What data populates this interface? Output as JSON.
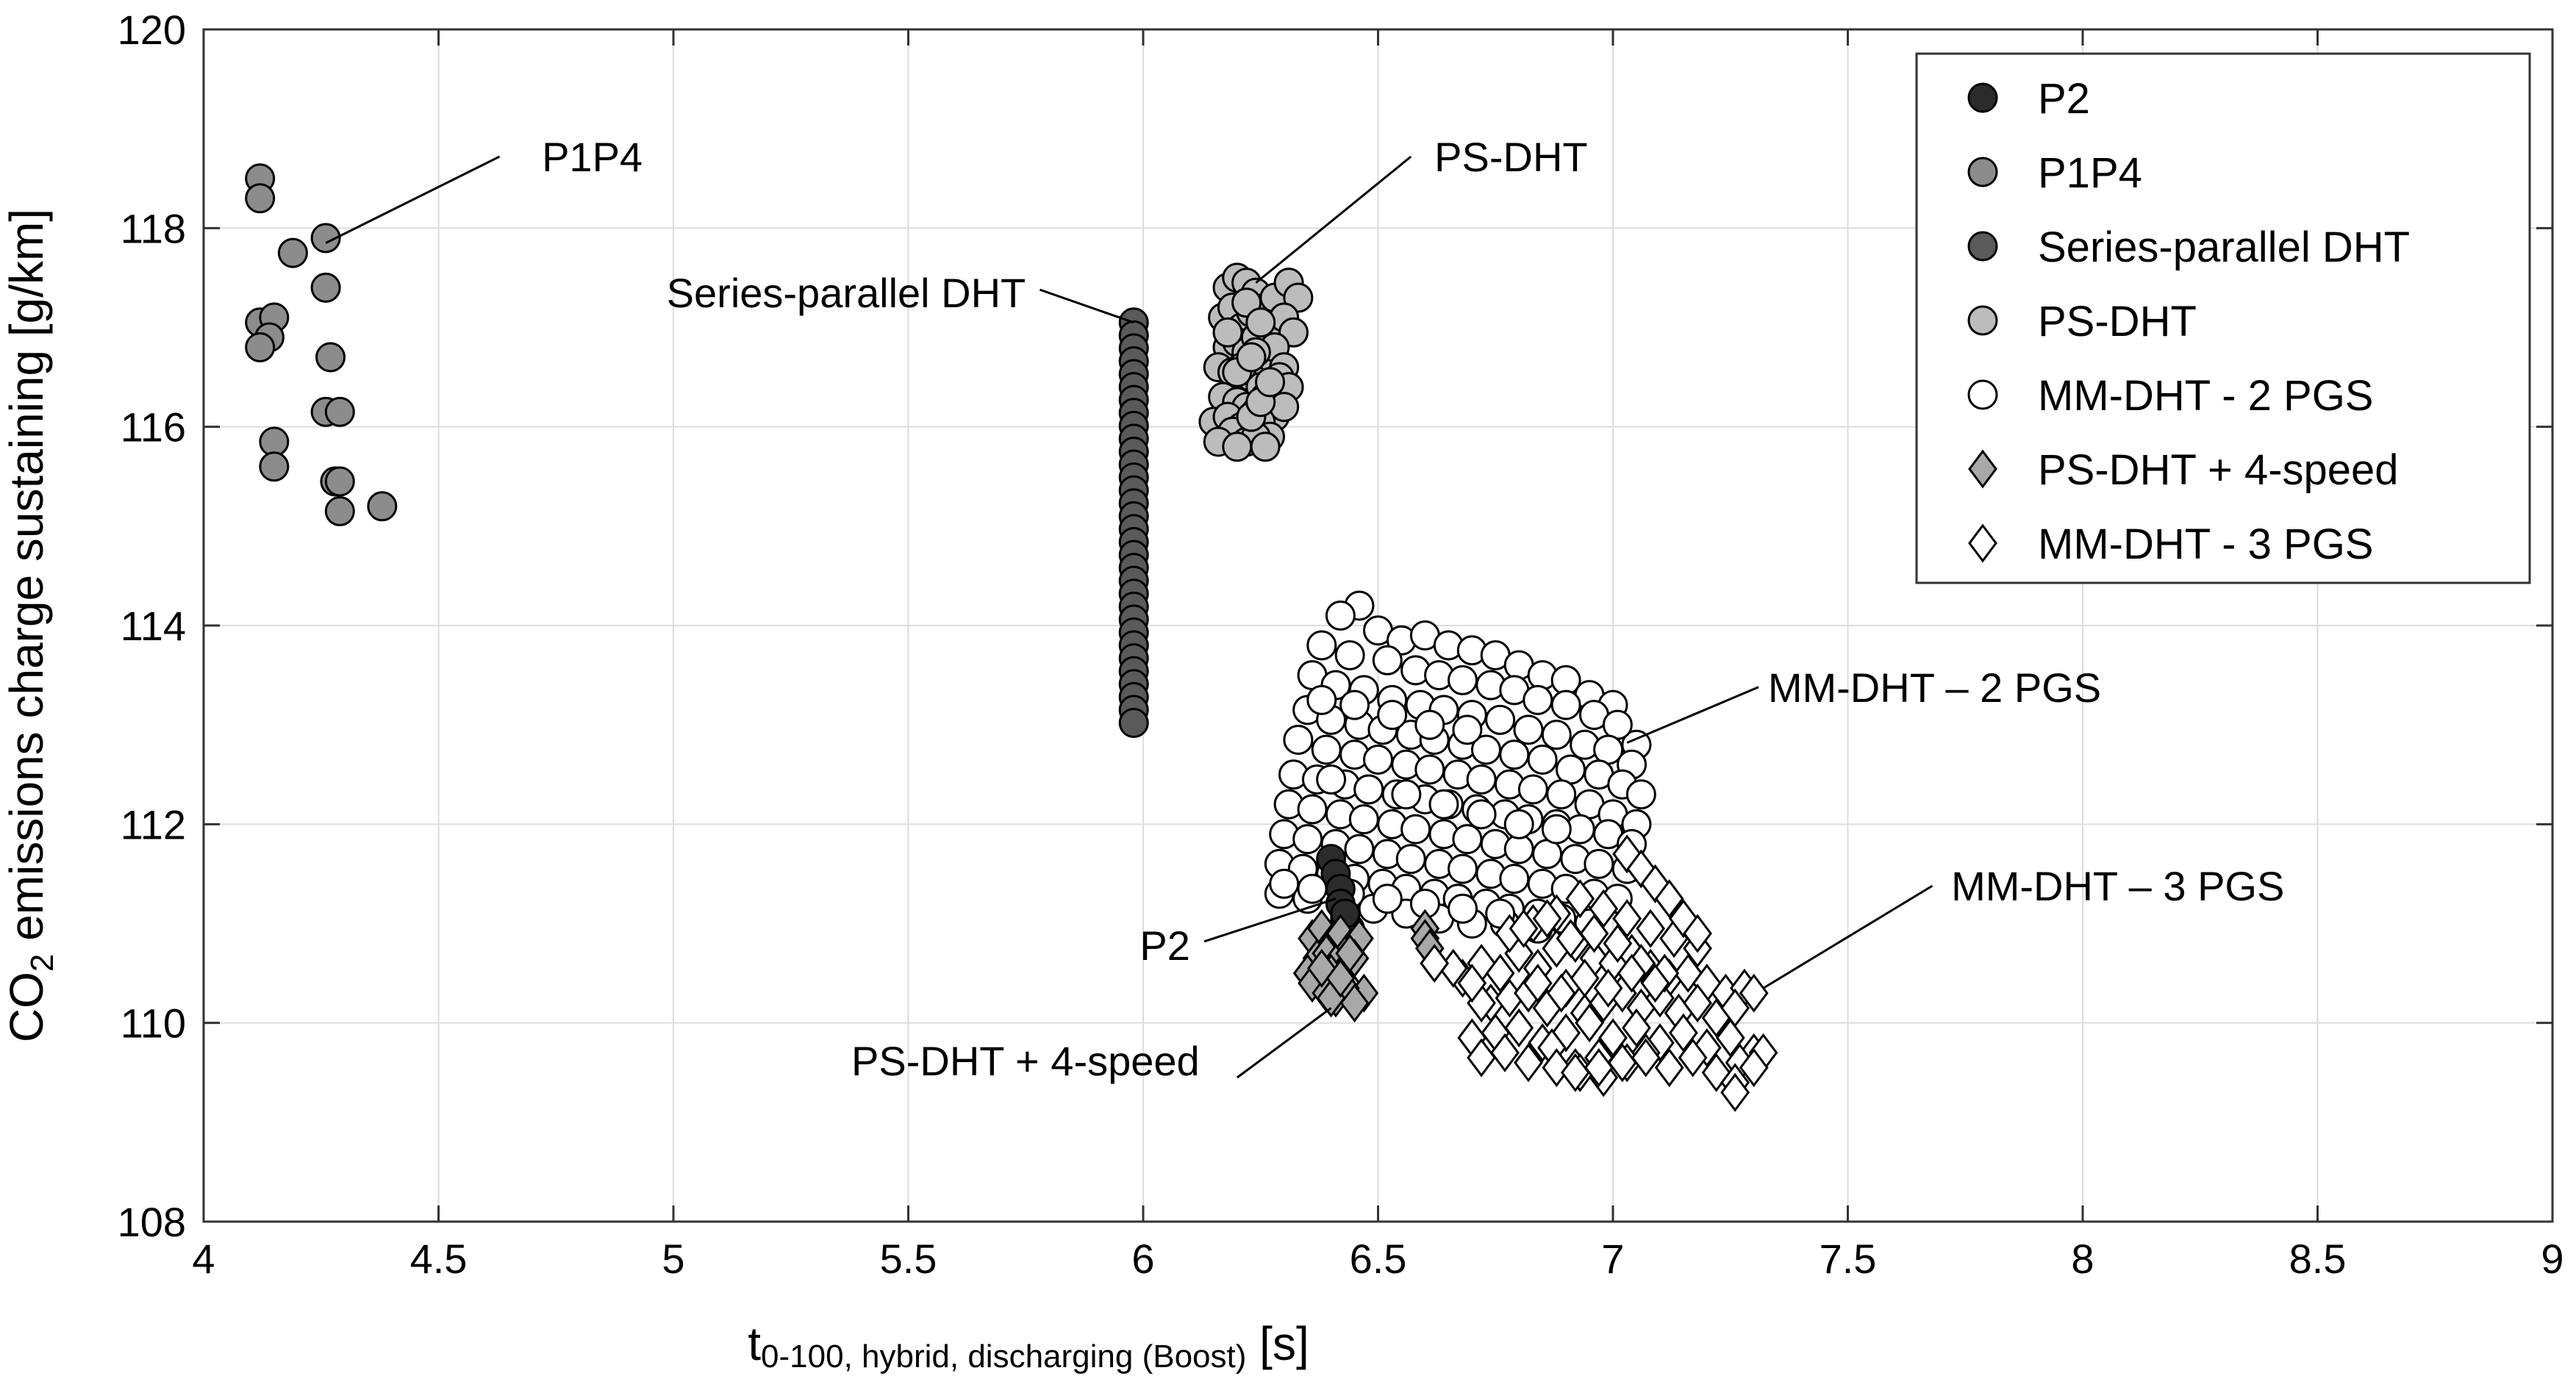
{
  "chart_data": {
    "type": "scatter",
    "xlabel": {
      "main": "t",
      "sub": "0-100, hybrid, discharging (Boost)",
      "unit": " [s]"
    },
    "ylabel": {
      "pre": "CO",
      "sub": "2",
      "post": " emissions charge sustaining [g/km]"
    },
    "xlim": [
      4,
      9
    ],
    "ylim": [
      108,
      120
    ],
    "xticks": [
      "4",
      "4.5",
      "5",
      "5.5",
      "6",
      "6.5",
      "7",
      "7.5",
      "8",
      "8.5",
      "9"
    ],
    "yticks": [
      "108",
      "110",
      "112",
      "114",
      "116",
      "118",
      "120"
    ],
    "grid": true,
    "legend_position": "top-right",
    "legend": [
      {
        "label": "P2",
        "marker": "circle",
        "fill": "#2b2b2b"
      },
      {
        "label": "P1P4",
        "marker": "circle",
        "fill": "#8c8c8c"
      },
      {
        "label": "Series-parallel DHT",
        "marker": "circle",
        "fill": "#5a5a5a"
      },
      {
        "label": "PS-DHT",
        "marker": "circle",
        "fill": "#bcbcbc"
      },
      {
        "label": "MM-DHT - 2 PGS",
        "marker": "circle",
        "fill": "#ffffff"
      },
      {
        "label": "PS-DHT + 4-speed",
        "marker": "diamond",
        "fill": "#a8a8a8"
      },
      {
        "label": "MM-DHT - 3 PGS",
        "marker": "diamond",
        "fill": "#ffffff"
      }
    ],
    "series": [
      {
        "name": "P1P4",
        "marker": "circle",
        "fill": "#8c8c8c",
        "x": [
          4.12,
          4.12,
          4.19,
          4.26,
          4.26,
          4.12,
          4.15,
          4.14,
          4.12,
          4.27,
          4.26,
          4.29,
          4.15,
          4.15,
          4.28,
          4.29,
          4.29,
          4.38
        ],
        "y": [
          118.5,
          118.3,
          117.75,
          117.9,
          117.4,
          117.05,
          117.1,
          116.9,
          116.8,
          116.7,
          116.15,
          116.15,
          115.85,
          115.6,
          115.45,
          115.45,
          115.15,
          115.2
        ]
      },
      {
        "name": "Series-parallel DHT",
        "marker": "circle",
        "fill": "#5a5a5a",
        "x": [
          5.98,
          5.98,
          5.98,
          5.98,
          5.98,
          5.98,
          5.98,
          5.98,
          5.98,
          5.98,
          5.98,
          5.98,
          5.98,
          5.98,
          5.98,
          5.98,
          5.98,
          5.98,
          5.98,
          5.98,
          5.98,
          5.98,
          5.98,
          5.98,
          5.98,
          5.98,
          5.98,
          5.98,
          5.98,
          5.98,
          5.98,
          5.98
        ],
        "y": [
          117.05,
          116.92,
          116.79,
          116.66,
          116.53,
          116.4,
          116.27,
          116.14,
          116.01,
          115.88,
          115.75,
          115.62,
          115.49,
          115.36,
          115.23,
          115.1,
          114.97,
          114.84,
          114.71,
          114.58,
          114.45,
          114.32,
          114.19,
          114.06,
          113.93,
          113.8,
          113.67,
          113.54,
          113.41,
          113.28,
          113.15,
          113.02
        ]
      },
      {
        "name": "PS-DHT",
        "marker": "circle",
        "fill": "#bcbcbc",
        "x": [
          6.18,
          6.2,
          6.22,
          6.24,
          6.26,
          6.28,
          6.31,
          6.33,
          6.17,
          6.19,
          6.21,
          6.23,
          6.25,
          6.27,
          6.3,
          6.32,
          6.18,
          6.2,
          6.22,
          6.24,
          6.26,
          6.28,
          6.3,
          6.16,
          6.19,
          6.21,
          6.23,
          6.25,
          6.27,
          6.29,
          6.31,
          6.17,
          6.2,
          6.22,
          6.24,
          6.26,
          6.28,
          6.3,
          6.15,
          6.18,
          6.21,
          6.23,
          6.25,
          6.27,
          6.19,
          6.22,
          6.24,
          6.26,
          6.16,
          6.2,
          6.23,
          6.25,
          6.21,
          6.24,
          6.27,
          6.18,
          6.22,
          6.25,
          6.2,
          6.23
        ],
        "y": [
          117.4,
          117.5,
          117.45,
          117.35,
          117.2,
          117.3,
          117.45,
          117.3,
          117.1,
          117.2,
          117.0,
          117.15,
          117.05,
          116.9,
          117.1,
          116.95,
          116.8,
          116.85,
          116.75,
          116.9,
          116.7,
          116.8,
          116.6,
          116.6,
          116.55,
          116.45,
          116.5,
          116.4,
          116.35,
          116.5,
          116.4,
          116.3,
          116.25,
          116.2,
          116.15,
          116.3,
          116.1,
          116.2,
          116.05,
          116.1,
          116.0,
          115.95,
          116.05,
          115.9,
          115.95,
          115.85,
          115.9,
          115.8,
          115.85,
          115.8,
          116.1,
          116.25,
          116.6,
          116.75,
          116.45,
          116.95,
          117.25,
          117.05,
          116.55,
          116.7
        ]
      },
      {
        "name": "MM-DHT - 2 PGS",
        "marker": "circle",
        "fill": "#ffffff",
        "x": [
          6.46,
          6.42,
          6.5,
          6.55,
          6.6,
          6.65,
          6.7,
          6.75,
          6.8,
          6.85,
          6.9,
          6.95,
          7.0,
          7.05,
          6.38,
          6.44,
          6.52,
          6.58,
          6.63,
          6.68,
          6.74,
          6.79,
          6.84,
          6.9,
          6.96,
          7.01,
          6.36,
          6.41,
          6.47,
          6.53,
          6.59,
          6.64,
          6.7,
          6.76,
          6.82,
          6.88,
          6.94,
          6.99,
          7.04,
          6.35,
          6.4,
          6.46,
          6.51,
          6.57,
          6.62,
          6.68,
          6.73,
          6.79,
          6.85,
          6.91,
          6.97,
          7.02,
          7.06,
          6.33,
          6.39,
          6.45,
          6.5,
          6.56,
          6.61,
          6.67,
          6.72,
          6.78,
          6.83,
          6.89,
          6.95,
          7.0,
          7.05,
          6.32,
          6.37,
          6.43,
          6.48,
          6.54,
          6.6,
          6.65,
          6.71,
          6.77,
          6.82,
          6.88,
          6.93,
          6.99,
          7.04,
          6.31,
          6.36,
          6.42,
          6.47,
          6.53,
          6.58,
          6.64,
          6.69,
          6.75,
          6.8,
          6.86,
          6.92,
          6.97,
          7.03,
          6.3,
          6.35,
          6.41,
          6.46,
          6.52,
          6.57,
          6.63,
          6.68,
          6.74,
          6.79,
          6.85,
          6.9,
          6.96,
          7.01,
          6.29,
          6.34,
          6.4,
          6.45,
          6.51,
          6.56,
          6.62,
          6.67,
          6.73,
          6.78,
          6.84,
          6.89,
          6.95,
          6.29,
          6.35,
          6.42,
          6.49,
          6.56,
          6.63,
          6.7,
          6.77,
          6.84,
          6.3,
          6.36,
          6.44,
          6.52,
          6.6,
          6.68,
          6.76,
          6.38,
          6.45,
          6.53,
          6.61,
          6.69,
          6.4,
          6.48,
          6.56,
          6.64,
          6.72,
          6.8,
          6.88
        ],
        "y": [
          114.2,
          114.1,
          113.95,
          113.85,
          113.9,
          113.8,
          113.75,
          113.7,
          113.6,
          113.5,
          113.45,
          113.3,
          113.2,
          112.8,
          113.8,
          113.7,
          113.65,
          113.55,
          113.5,
          113.45,
          113.4,
          113.35,
          113.25,
          113.2,
          113.1,
          113.0,
          113.5,
          113.4,
          113.35,
          113.25,
          113.2,
          113.15,
          113.1,
          113.05,
          112.95,
          112.9,
          112.8,
          112.75,
          112.6,
          113.15,
          113.05,
          113.0,
          112.95,
          112.9,
          112.85,
          112.8,
          112.75,
          112.7,
          112.65,
          112.55,
          112.5,
          112.4,
          112.3,
          112.85,
          112.75,
          112.7,
          112.65,
          112.6,
          112.55,
          112.5,
          112.45,
          112.4,
          112.35,
          112.3,
          112.2,
          112.1,
          112.0,
          112.5,
          112.45,
          112.4,
          112.35,
          112.3,
          112.25,
          112.2,
          112.15,
          112.1,
          112.05,
          112.0,
          111.95,
          111.9,
          111.8,
          112.2,
          112.15,
          112.1,
          112.05,
          112.0,
          111.95,
          111.9,
          111.85,
          111.8,
          111.75,
          111.7,
          111.65,
          111.6,
          111.55,
          111.9,
          111.85,
          111.8,
          111.75,
          111.7,
          111.65,
          111.6,
          111.55,
          111.5,
          111.45,
          111.4,
          111.35,
          111.3,
          111.25,
          111.6,
          111.55,
          111.5,
          111.45,
          111.4,
          111.35,
          111.3,
          111.25,
          111.2,
          111.15,
          111.1,
          111.05,
          111.0,
          111.3,
          111.25,
          111.2,
          111.15,
          111.1,
          111.05,
          111.0,
          111.0,
          110.95,
          111.4,
          111.35,
          111.3,
          111.25,
          111.2,
          111.15,
          111.1,
          113.25,
          113.2,
          113.1,
          113.0,
          112.95,
          112.45,
          112.35,
          112.3,
          112.2,
          112.1,
          112.0,
          111.95
        ]
      },
      {
        "name": "P2",
        "marker": "circle",
        "fill": "#2b2b2b",
        "x": [
          6.4,
          6.41,
          6.42,
          6.42,
          6.43,
          6.44,
          6.43
        ],
        "y": [
          111.65,
          111.5,
          111.35,
          111.2,
          111.05,
          110.95,
          111.1
        ]
      },
      {
        "name": "PS-DHT + 4-speed",
        "marker": "diamond",
        "fill": "#a8a8a8",
        "x": [
          6.36,
          6.38,
          6.4,
          6.42,
          6.44,
          6.46,
          6.37,
          6.39,
          6.41,
          6.43,
          6.45,
          6.35,
          6.38,
          6.4,
          6.42,
          6.44,
          6.47,
          6.36,
          6.39,
          6.41,
          6.43,
          6.45,
          6.38,
          6.4,
          6.42,
          6.44,
          6.6,
          6.6,
          6.61
        ],
        "y": [
          110.85,
          110.95,
          110.8,
          110.9,
          110.75,
          110.85,
          110.65,
          110.7,
          110.6,
          110.55,
          110.65,
          110.5,
          110.45,
          110.5,
          110.4,
          110.35,
          110.3,
          110.4,
          110.3,
          110.25,
          110.35,
          110.2,
          110.55,
          110.25,
          110.45,
          110.7,
          110.95,
          110.85,
          110.75
        ]
      },
      {
        "name": "MM-DHT - 3 PGS",
        "marker": "diamond",
        "fill": "#ffffff",
        "x": [
          6.68,
          6.72,
          6.76,
          6.8,
          6.84,
          6.88,
          6.92,
          6.96,
          7.0,
          7.04,
          7.08,
          7.12,
          7.16,
          7.2,
          7.24,
          7.28,
          6.74,
          6.78,
          6.82,
          6.86,
          6.9,
          6.94,
          6.98,
          7.02,
          7.06,
          7.1,
          7.14,
          7.18,
          7.22,
          7.26,
          7.3,
          6.7,
          6.75,
          6.8,
          6.85,
          6.9,
          6.95,
          7.0,
          7.05,
          7.1,
          7.15,
          7.2,
          7.25,
          7.3,
          6.72,
          6.77,
          6.82,
          6.87,
          6.92,
          6.97,
          7.02,
          7.07,
          7.12,
          7.17,
          7.22,
          7.27,
          7.32,
          6.78,
          6.83,
          6.88,
          6.93,
          6.98,
          7.03,
          7.08,
          7.13,
          7.18,
          6.81,
          6.86,
          6.91,
          6.96,
          7.01,
          7.06,
          7.11,
          6.84,
          6.89,
          6.94,
          6.99,
          7.04,
          7.09,
          6.88,
          6.93,
          6.98,
          7.03,
          6.92,
          6.97,
          7.02,
          7.07,
          7.03,
          7.06,
          7.09,
          7.12,
          7.15,
          7.18,
          7.26,
          7.3,
          7.26,
          6.66,
          6.62,
          6.72,
          6.7
        ],
        "y": [
          110.45,
          110.6,
          110.5,
          110.7,
          110.55,
          110.75,
          110.8,
          110.65,
          110.6,
          110.7,
          110.55,
          110.45,
          110.5,
          110.4,
          110.3,
          110.35,
          110.2,
          110.25,
          110.3,
          110.15,
          110.35,
          110.1,
          110.2,
          110.3,
          110.15,
          110.25,
          110.1,
          110.2,
          110.05,
          110.15,
          110.3,
          109.85,
          109.9,
          109.95,
          109.8,
          109.9,
          110.0,
          109.85,
          109.95,
          109.8,
          109.9,
          109.75,
          109.85,
          109.7,
          109.65,
          109.7,
          109.6,
          109.75,
          109.55,
          109.65,
          109.6,
          109.7,
          109.55,
          109.65,
          109.5,
          109.6,
          109.7,
          110.9,
          111.0,
          111.1,
          111.25,
          111.15,
          111.05,
          110.95,
          110.85,
          110.75,
          110.95,
          111.05,
          110.85,
          110.9,
          110.8,
          110.6,
          110.5,
          110.4,
          110.3,
          110.45,
          110.35,
          110.5,
          110.4,
          109.55,
          109.5,
          109.45,
          109.6,
          109.5,
          109.55,
          109.6,
          109.65,
          111.7,
          111.55,
          111.4,
          111.25,
          111.05,
          110.9,
          109.4,
          109.55,
          109.3,
          110.55,
          110.6,
          110.2,
          110.4
        ]
      }
    ],
    "annotations": [
      {
        "text": "P1P4",
        "x": 4.72,
        "y": 118.72,
        "anchor": "start",
        "line": [
          [
            4.26,
            117.85
          ],
          [
            4.63,
            118.72
          ]
        ]
      },
      {
        "text": "PS-DHT",
        "x": 6.62,
        "y": 118.72,
        "anchor": "start",
        "line": [
          [
            6.24,
            117.45
          ],
          [
            6.57,
            118.72
          ]
        ]
      },
      {
        "text": "Series-parallel DHT",
        "x": 5.75,
        "y": 117.35,
        "anchor": "end",
        "line": [
          [
            5.98,
            117.05
          ],
          [
            5.78,
            117.38
          ]
        ]
      },
      {
        "text": "MM-DHT  – 2 PGS",
        "x": 7.33,
        "y": 113.38,
        "anchor": "start",
        "line": [
          [
            7.03,
            112.82
          ],
          [
            7.31,
            113.38
          ]
        ]
      },
      {
        "text": "MM-DHT  – 3 PGS",
        "x": 7.72,
        "y": 111.38,
        "anchor": "start",
        "line": [
          [
            7.32,
            110.35
          ],
          [
            7.68,
            111.38
          ]
        ]
      },
      {
        "text": "P2",
        "x": 6.1,
        "y": 110.78,
        "anchor": "end",
        "line": [
          [
            6.41,
            111.25
          ],
          [
            6.13,
            110.82
          ]
        ]
      },
      {
        "text": "PS-DHT + 4-speed",
        "x": 6.12,
        "y": 109.62,
        "anchor": "end",
        "line": [
          [
            6.4,
            110.15
          ],
          [
            6.2,
            109.45
          ]
        ]
      }
    ]
  }
}
